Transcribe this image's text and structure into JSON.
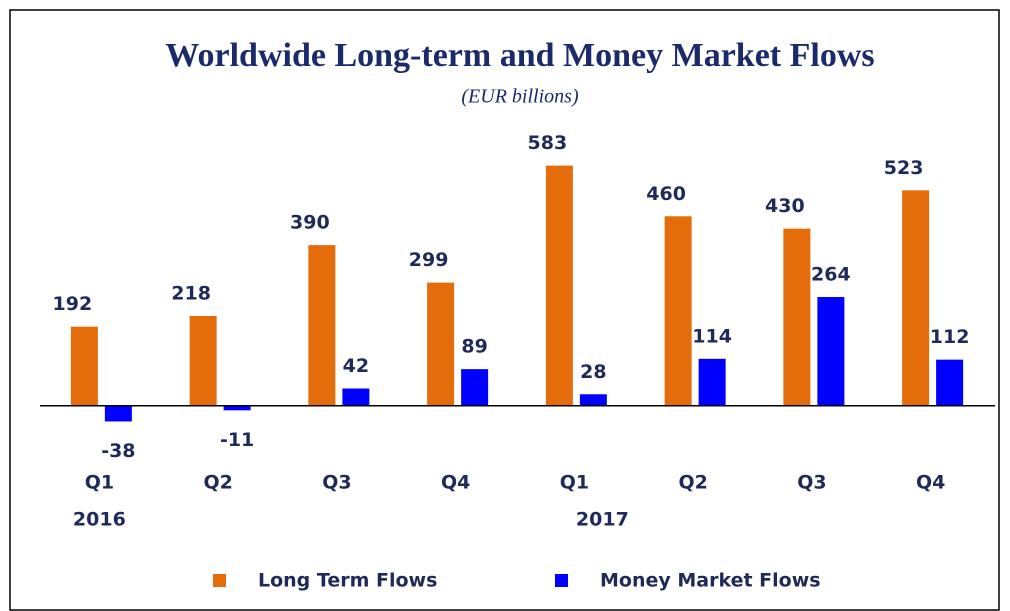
{
  "chart_data": {
    "type": "bar",
    "title": "Worldwide Long-term and Money Market Flows",
    "subtitle": "(EUR billions)",
    "categories": [
      "Q1",
      "Q2",
      "Q3",
      "Q4",
      "Q1",
      "Q2",
      "Q3",
      "Q4"
    ],
    "years": [
      "2016",
      "2017"
    ],
    "series": [
      {
        "name": "Long Term Flows",
        "color": "#e46c0a",
        "values": [
          192,
          218,
          390,
          299,
          583,
          460,
          430,
          523
        ]
      },
      {
        "name": "Money Market Flows",
        "color": "#0000ff",
        "values": [
          -38,
          -11,
          42,
          89,
          28,
          114,
          264,
          112
        ]
      }
    ],
    "ylim": [
      -100,
      650
    ]
  }
}
